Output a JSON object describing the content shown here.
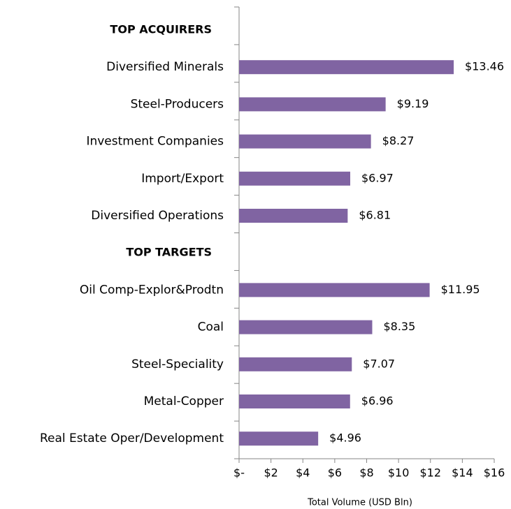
{
  "chart_data": {
    "type": "bar",
    "groups": [
      {
        "name": "TOP ACQUIRERS",
        "categories": [
          "Diversified Minerals",
          "Steel-Producers",
          "Investment Companies",
          "Import/Export",
          "Diversified Operations"
        ],
        "values": [
          13.46,
          9.19,
          8.27,
          6.97,
          6.81
        ],
        "value_labels": [
          "$13.46",
          "$9.19",
          "$8.27",
          "$6.97",
          "$6.81"
        ]
      },
      {
        "name": "TOP TARGETS",
        "categories": [
          "Oil Comp-Explor&Prodtn",
          "Coal",
          "Steel-Speciality",
          "Metal-Copper",
          "Real Estate Oper/Development"
        ],
        "values": [
          11.95,
          8.35,
          7.07,
          6.96,
          4.96
        ],
        "value_labels": [
          "$11.95",
          "$8.35",
          "$7.07",
          "$6.96",
          "$4.96"
        ]
      }
    ],
    "color": "#8064a2",
    "header_color": "#31849b",
    "xlabel": "Total Volume (USD Bln)",
    "xlim": [
      0,
      16
    ],
    "xticks": [
      {
        "value": 0,
        "label": "$-"
      },
      {
        "value": 2,
        "label": "$2"
      },
      {
        "value": 4,
        "label": "$4"
      },
      {
        "value": 6,
        "label": "$6"
      },
      {
        "value": 8,
        "label": "$8"
      },
      {
        "value": 10,
        "label": "$10"
      },
      {
        "value": 12,
        "label": "$12"
      },
      {
        "value": 14,
        "label": "$14"
      },
      {
        "value": 16,
        "label": "$16"
      }
    ]
  }
}
